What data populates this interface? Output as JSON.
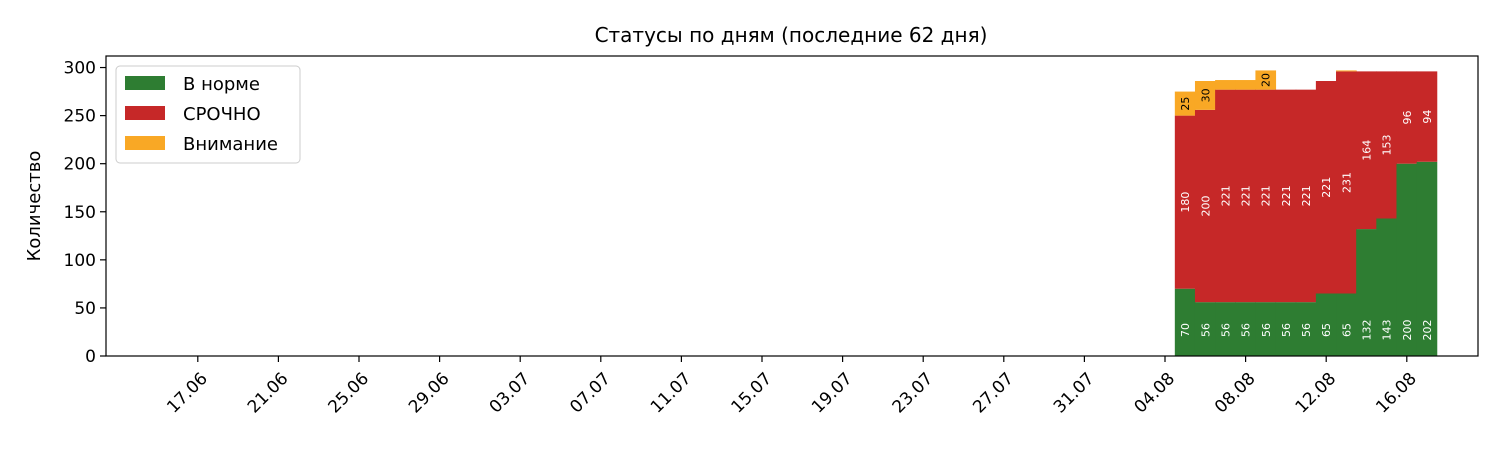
{
  "chart_data": {
    "type": "bar",
    "stacked": true,
    "title": "Статусы по дням (последние 62 дня)",
    "xlabel": "",
    "ylabel": "Количество",
    "ylim": [
      0,
      312
    ],
    "yticks": [
      0,
      50,
      100,
      150,
      200,
      250,
      300
    ],
    "x_start": "15.06",
    "x_end": "17.08",
    "xticks": [
      "17.06",
      "21.06",
      "25.06",
      "29.06",
      "03.07",
      "07.07",
      "11.07",
      "15.07",
      "19.07",
      "23.07",
      "27.07",
      "31.07",
      "04.08",
      "08.08",
      "12.08",
      "16.08"
    ],
    "legend_position": "upper-left",
    "grid": false,
    "categories": [
      "05.08",
      "06.08",
      "07.08",
      "08.08",
      "09.08",
      "10.08",
      "11.08",
      "12.08",
      "13.08",
      "14.08",
      "15.08",
      "16.08",
      "17.08"
    ],
    "series": [
      {
        "name": "В норме",
        "color": "#2e7d32",
        "label_color": "#ffffff",
        "values": [
          70,
          56,
          56,
          56,
          56,
          56,
          56,
          65,
          65,
          132,
          143,
          200,
          202
        ]
      },
      {
        "name": "СРОЧНО",
        "color": "#c62828",
        "label_color": "#ffffff",
        "values": [
          180,
          200,
          221,
          221,
          221,
          221,
          221,
          221,
          231,
          164,
          153,
          96,
          94
        ]
      },
      {
        "name": "Внимание",
        "color": "#f9a825",
        "label_color": "#000000",
        "values": [
          25,
          30,
          10,
          10,
          20,
          0,
          0,
          0,
          1,
          0,
          0,
          0,
          0
        ],
        "labels": [
          "25",
          "30",
          "",
          "",
          "20",
          "",
          "",
          "",
          "",
          "",
          "",
          "",
          ""
        ]
      }
    ]
  }
}
